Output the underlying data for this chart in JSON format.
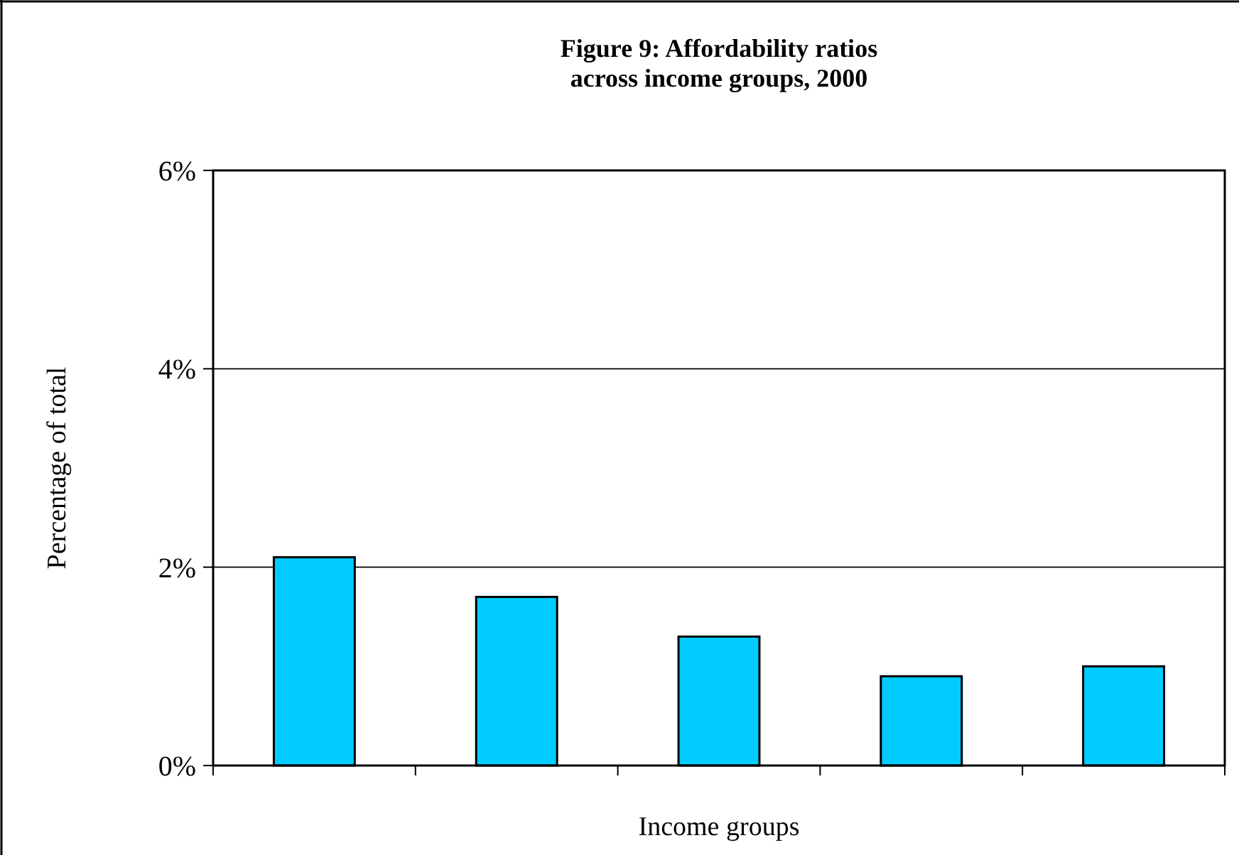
{
  "chart_data": {
    "type": "bar",
    "title": "Figure 9: Affordability ratios across income groups, 2000",
    "xlabel": "Income groups",
    "ylabel": "Percentage of total",
    "categories": [
      null,
      null,
      null,
      null,
      null
    ],
    "values": [
      2.1,
      1.7,
      1.3,
      0.9,
      1.0
    ],
    "color": "#00ccff",
    "ylim": [
      0,
      6
    ],
    "yticks": [
      {
        "value": 0,
        "label": "0%"
      },
      {
        "value": 2,
        "label": "2%"
      },
      {
        "value": 4,
        "label": "4%"
      },
      {
        "value": 6,
        "label": "6%"
      }
    ],
    "grid": "y"
  }
}
